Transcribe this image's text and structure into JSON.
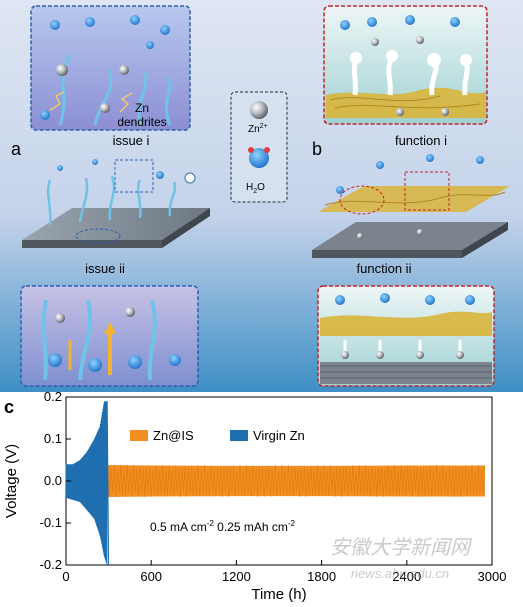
{
  "panels": {
    "a": {
      "letter": "a",
      "issue_i": "issue i",
      "issue_ii": "issue ii",
      "dendrites_line1": "Zn",
      "dendrites_line2": "dendrites"
    },
    "b": {
      "letter": "b",
      "function_i": "function i",
      "function_ii": "function ii"
    },
    "c": {
      "letter": "c"
    }
  },
  "legend_box": {
    "zn_ion": "Zn",
    "zn_ion_sup": "2+",
    "water": "H",
    "water_sub": "2",
    "water_o": "O"
  },
  "colors": {
    "zn_is": "#f28e22",
    "virgin_zn": "#1f6fb0",
    "panel_border_blue": "#2f5fb0",
    "panel_border_red": "#c0262c",
    "fiber": "#d9b53b"
  },
  "watermark": {
    "line1": "安徽大学新闻网",
    "line2": "news.ahu.edu.cn"
  },
  "chart_data": {
    "type": "line",
    "xlabel": "Time (h)",
    "ylabel": "Voltage (V)",
    "xlim": [
      0,
      3000
    ],
    "ylim": [
      -0.2,
      0.2
    ],
    "x_ticks": [
      0,
      600,
      1200,
      1800,
      2400,
      3000
    ],
    "y_ticks": [
      0.2,
      0.1,
      0.0,
      -0.1,
      -0.2
    ],
    "x_tick_labels": [
      "0",
      "600",
      "1200",
      "1800",
      "2400",
      "3000"
    ],
    "y_tick_labels": [
      "0.2",
      "0.1",
      "0.0",
      "-0.1",
      "-0.2"
    ],
    "annotation": {
      "text1": "0.5 mA cm",
      "sup1": "-2",
      "text2": " 0.25 mAh cm",
      "sup2": "-2"
    },
    "legend_placement": "top-center",
    "series": [
      {
        "name": "Zn@IS",
        "color": "#f28e22",
        "x": [
          0,
          300,
          600,
          1200,
          1800,
          2400,
          2950
        ],
        "upper": [
          0.038,
          0.038,
          0.037,
          0.036,
          0.036,
          0.037,
          0.037
        ],
        "lower": [
          -0.038,
          -0.038,
          -0.037,
          -0.036,
          -0.036,
          -0.037,
          -0.037
        ]
      },
      {
        "name": "Virgin Zn",
        "color": "#1f6fb0",
        "x": [
          0,
          50,
          100,
          150,
          200,
          240,
          270,
          290,
          300
        ],
        "upper": [
          0.04,
          0.04,
          0.05,
          0.07,
          0.1,
          0.13,
          0.19,
          0.19,
          -0.2
        ],
        "lower": [
          -0.04,
          -0.045,
          -0.05,
          -0.07,
          -0.09,
          -0.13,
          -0.18,
          -0.2,
          -0.2
        ]
      }
    ]
  }
}
